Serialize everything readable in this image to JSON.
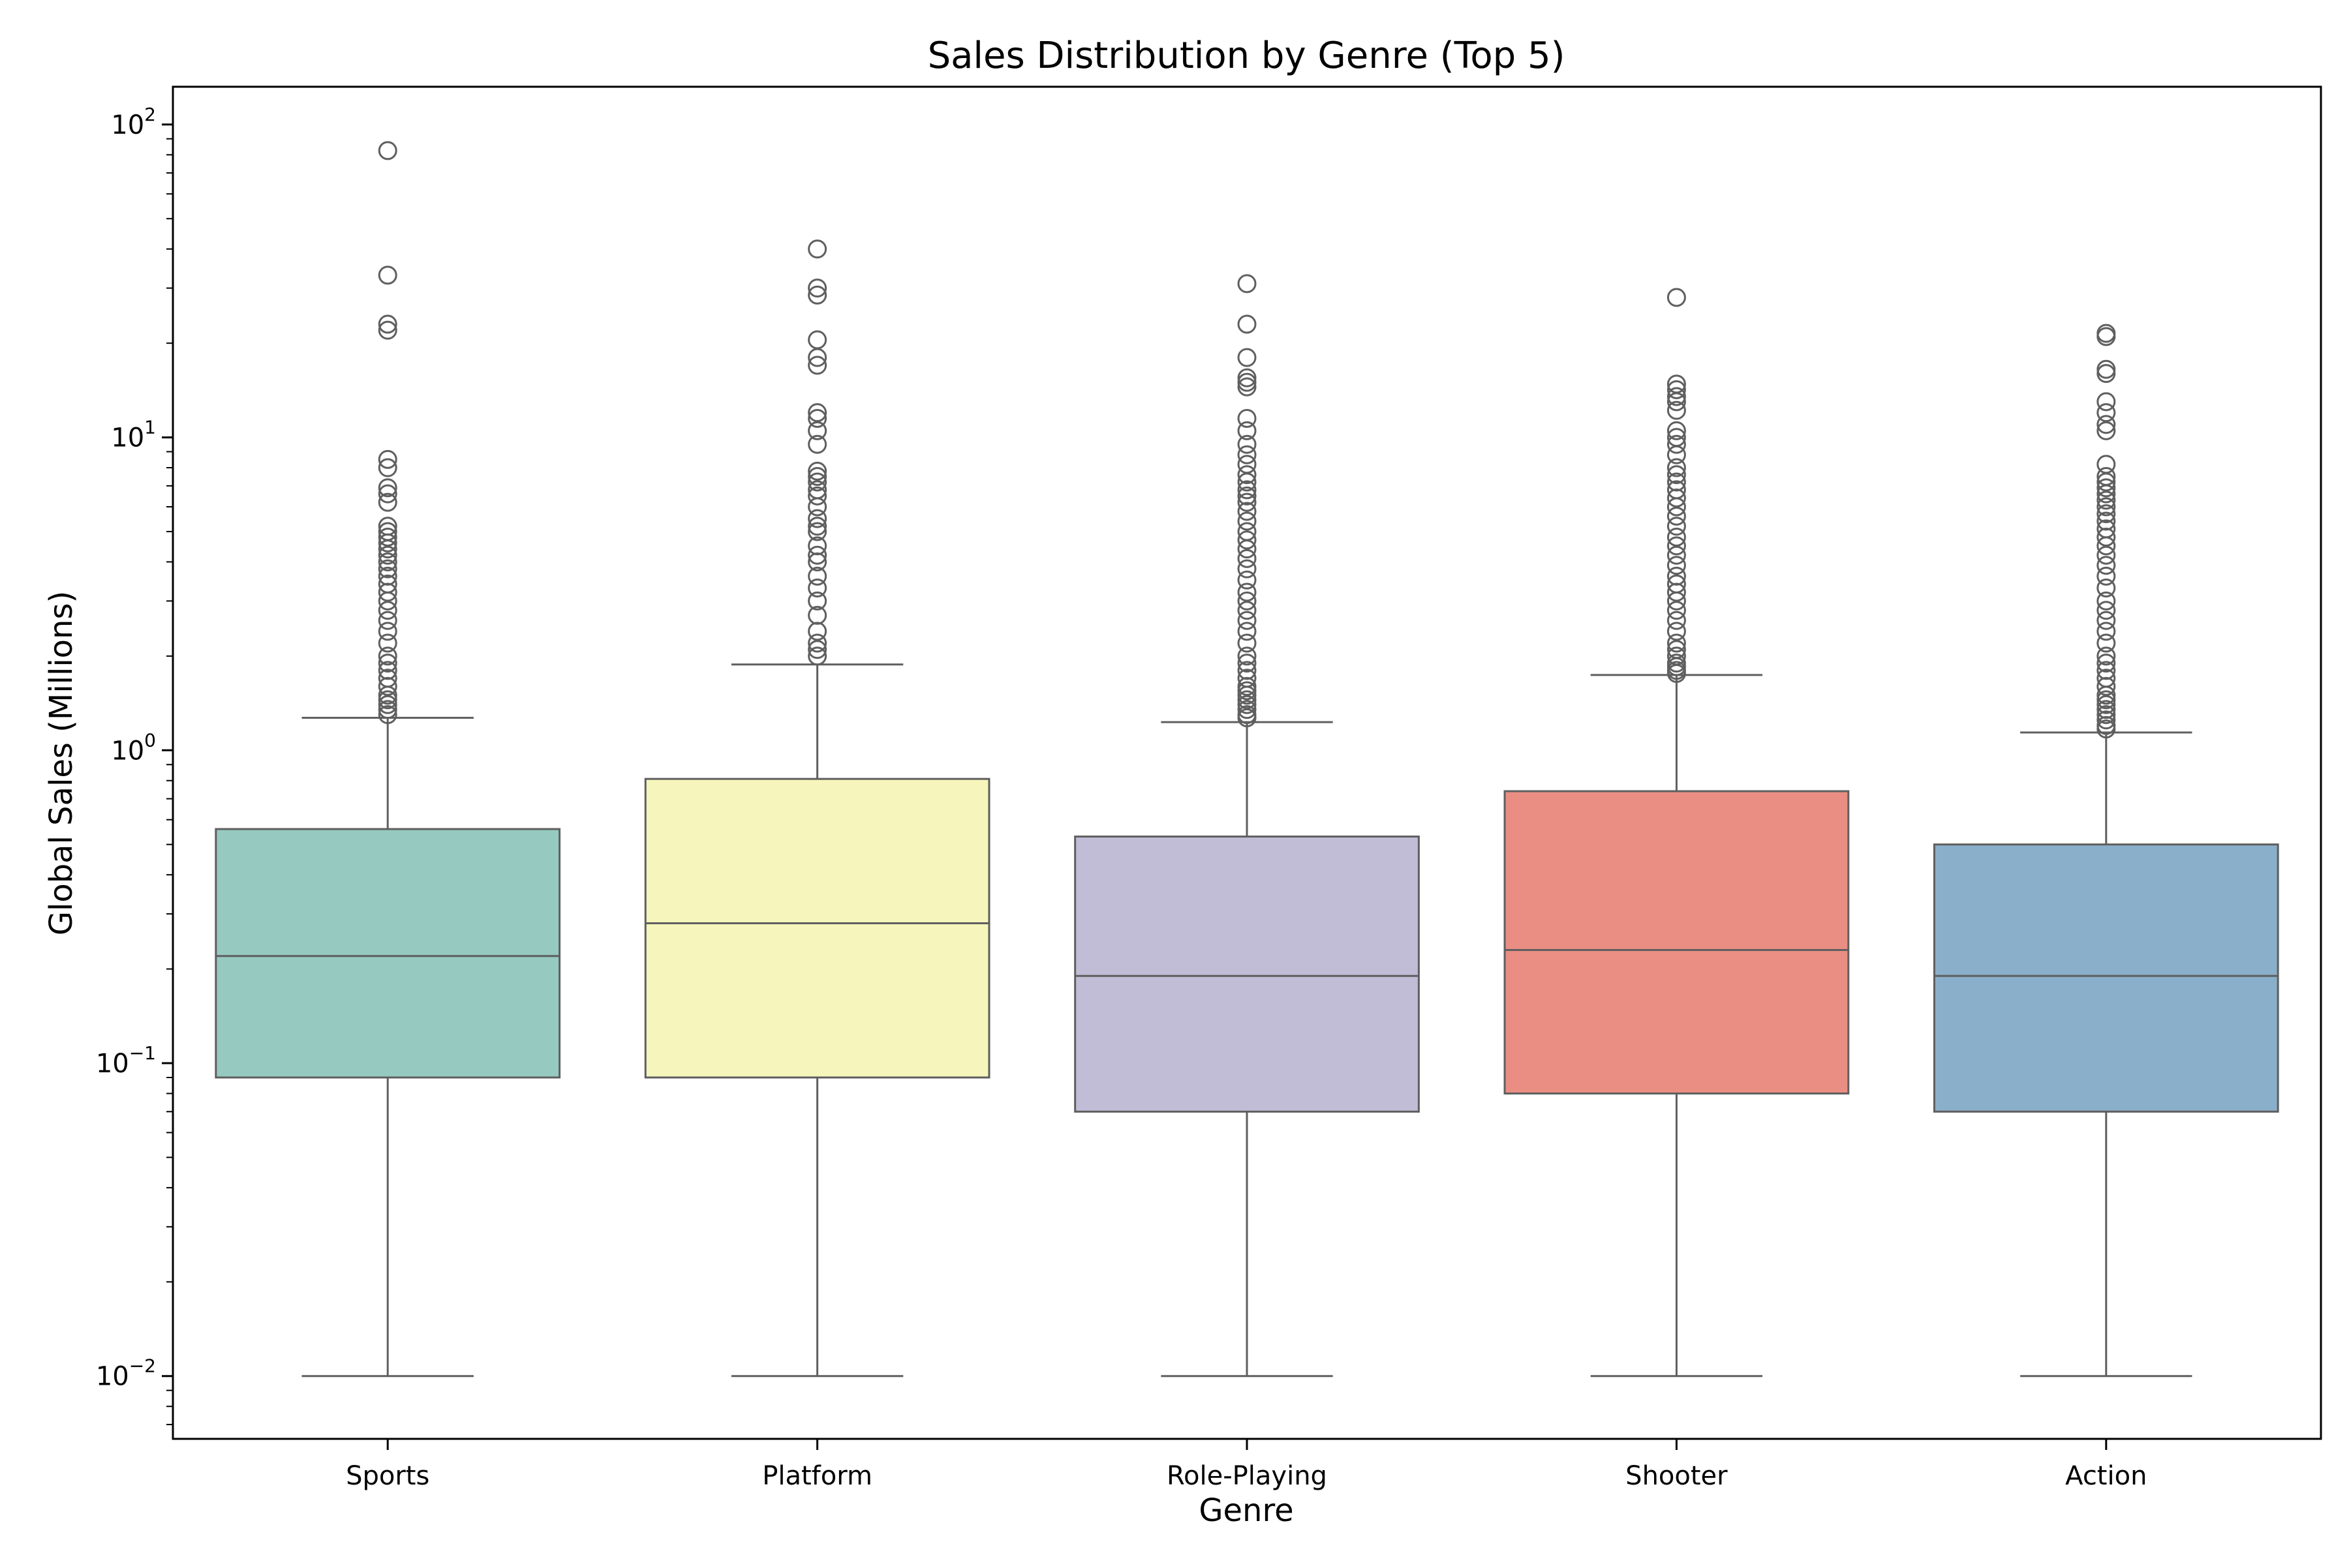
{
  "chart_data": {
    "type": "box",
    "title": "Sales Distribution by Genre (Top 5)",
    "xlabel": "Genre",
    "ylabel": "Global Sales (Millions)",
    "yscale": "log",
    "ylim": [
      0.0063,
      132
    ],
    "grid": false,
    "y_ticks": [
      {
        "value": 0.01,
        "base": "10",
        "exp": "−2"
      },
      {
        "value": 0.1,
        "base": "10",
        "exp": "−1"
      },
      {
        "value": 1,
        "base": "10",
        "exp": "0"
      },
      {
        "value": 10,
        "base": "10",
        "exp": "1"
      },
      {
        "value": 100,
        "base": "10",
        "exp": "2"
      }
    ],
    "categories": [
      "Sports",
      "Platform",
      "Role-Playing",
      "Shooter",
      "Action"
    ],
    "boxes": [
      {
        "category": "Sports",
        "color": "#96c9c0",
        "whisker_low": 0.01,
        "q1": 0.09,
        "median": 0.22,
        "q3": 0.56,
        "whisker_high": 1.27,
        "outliers": [
          82.5,
          33,
          23,
          22,
          8.5,
          8,
          6.9,
          6.6,
          6.2,
          5.2,
          5.0,
          4.8,
          4.6,
          4.4,
          4.2,
          4.0,
          3.8,
          3.6,
          3.4,
          3.2,
          3.0,
          2.8,
          2.6,
          2.4,
          2.2,
          2.0,
          1.9,
          1.8,
          1.7,
          1.6,
          1.5,
          1.45,
          1.4,
          1.35,
          1.3
        ]
      },
      {
        "category": "Platform",
        "color": "#f6f5bb",
        "whisker_low": 0.01,
        "q1": 0.09,
        "median": 0.28,
        "q3": 0.81,
        "whisker_high": 1.88,
        "outliers": [
          40,
          30,
          28.5,
          20.5,
          18,
          17,
          12,
          11.5,
          10.5,
          9.5,
          7.8,
          7.5,
          7.2,
          6.8,
          6.5,
          6.0,
          5.5,
          5.2,
          5.0,
          4.5,
          4.2,
          4.0,
          3.6,
          3.3,
          3.0,
          2.7,
          2.4,
          2.2,
          2.1,
          2.0
        ]
      },
      {
        "category": "Role-Playing",
        "color": "#c1bdd7",
        "whisker_low": 0.01,
        "q1": 0.07,
        "median": 0.19,
        "q3": 0.53,
        "whisker_high": 1.23,
        "outliers": [
          31,
          23,
          18,
          15.5,
          15,
          14.5,
          11.5,
          10.5,
          9.5,
          8.8,
          8.2,
          7.6,
          7.2,
          6.8,
          6.5,
          6.2,
          5.8,
          5.4,
          5.0,
          4.7,
          4.4,
          4.1,
          3.8,
          3.5,
          3.2,
          3.0,
          2.8,
          2.6,
          2.4,
          2.2,
          2.0,
          1.9,
          1.8,
          1.7,
          1.6,
          1.55,
          1.5,
          1.45,
          1.4,
          1.35,
          1.3,
          1.27
        ]
      },
      {
        "category": "Shooter",
        "color": "#ea8e83",
        "whisker_low": 0.01,
        "q1": 0.08,
        "median": 0.23,
        "q3": 0.74,
        "whisker_high": 1.74,
        "outliers": [
          28,
          14.8,
          14.2,
          13.5,
          13,
          12.2,
          10.5,
          10,
          9.5,
          8.8,
          8,
          7.6,
          7.2,
          6.8,
          6.4,
          6.0,
          5.6,
          5.2,
          4.8,
          4.5,
          4.2,
          3.9,
          3.6,
          3.4,
          3.2,
          3.0,
          2.8,
          2.6,
          2.4,
          2.2,
          2.1,
          2.0,
          1.9,
          1.85,
          1.8,
          1.76
        ]
      },
      {
        "category": "Action",
        "color": "#8aafca",
        "whisker_low": 0.01,
        "q1": 0.07,
        "median": 0.19,
        "q3": 0.5,
        "whisker_high": 1.14,
        "outliers": [
          21.5,
          21,
          16.5,
          16,
          13,
          12,
          11,
          10.5,
          8.2,
          7.5,
          7.2,
          6.9,
          6.6,
          6.3,
          6.0,
          5.7,
          5.4,
          5.1,
          4.8,
          4.5,
          4.2,
          3.9,
          3.6,
          3.3,
          3.0,
          2.8,
          2.6,
          2.4,
          2.2,
          2.0,
          1.9,
          1.8,
          1.7,
          1.6,
          1.5,
          1.45,
          1.4,
          1.35,
          1.3,
          1.25,
          1.2,
          1.17
        ]
      }
    ]
  }
}
